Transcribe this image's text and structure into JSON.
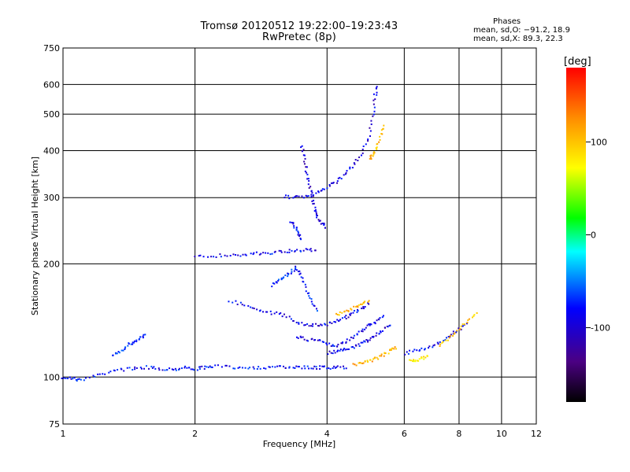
{
  "header": {
    "title_line1": "Tromsø 20120512 19:22:00–19:23:43",
    "title_line2": "RwPretec (8p)"
  },
  "phases": {
    "title": "Phases",
    "line1": "mean, sd,O: −91.2, 18.9",
    "line2": "mean, sd,X:  89.3, 22.3"
  },
  "chart_data": {
    "type": "scatter",
    "title": "Tromsø 20120512 19:22:00–19:23:43",
    "subtitle": "RwPretec (8p)",
    "xlabel": "Frequency [MHz]",
    "ylabel": "Stationary phase Virtual Height [km]",
    "x_scale": "log",
    "y_scale": "log",
    "xlim": [
      1,
      12
    ],
    "ylim": [
      75,
      750
    ],
    "x_ticks": [
      1,
      2,
      4,
      6,
      8,
      10,
      12
    ],
    "y_ticks": [
      75,
      100,
      200,
      300,
      400,
      500,
      600,
      750
    ],
    "grid": true,
    "colorbar": {
      "label": "[deg]",
      "range": [
        -180,
        180
      ],
      "ticks": [
        100,
        0,
        -100
      ],
      "colors": [
        "#000000",
        "#4b0082",
        "#0000ff",
        "#00ffff",
        "#00ff00",
        "#ffff00",
        "#ff8c00",
        "#ff0000"
      ]
    },
    "traces": [
      {
        "name": "",
        "phase": -90,
        "points": [
          [
            1.0,
            100
          ],
          [
            1.05,
            99
          ],
          [
            1.1,
            98
          ],
          [
            1.2,
            101
          ],
          [
            1.3,
            104
          ],
          [
            1.4,
            105
          ],
          [
            1.5,
            106
          ],
          [
            1.6,
            106
          ],
          [
            1.7,
            105
          ],
          [
            1.8,
            105
          ],
          [
            1.9,
            106
          ],
          [
            2.0,
            105
          ],
          [
            2.1,
            106
          ],
          [
            2.2,
            107
          ],
          [
            2.4,
            106
          ],
          [
            2.6,
            106
          ],
          [
            2.8,
            106
          ],
          [
            3.0,
            106
          ],
          [
            3.2,
            106
          ],
          [
            3.4,
            106
          ],
          [
            3.6,
            106
          ],
          [
            3.8,
            106
          ],
          [
            4.0,
            106
          ],
          [
            4.2,
            106
          ],
          [
            4.5,
            106
          ]
        ]
      },
      {
        "name": "",
        "phase": -80,
        "points": [
          [
            1.3,
            115
          ],
          [
            1.35,
            117
          ],
          [
            1.4,
            121
          ],
          [
            1.45,
            124
          ],
          [
            1.5,
            127
          ],
          [
            1.55,
            129
          ]
        ]
      },
      {
        "name": "",
        "phase": -95,
        "points": [
          [
            2.0,
            209
          ],
          [
            2.2,
            210
          ],
          [
            2.4,
            211
          ],
          [
            2.6,
            212
          ],
          [
            2.8,
            213
          ],
          [
            3.0,
            214
          ],
          [
            3.2,
            216
          ],
          [
            3.4,
            217
          ],
          [
            3.6,
            218
          ],
          [
            3.8,
            217
          ]
        ]
      },
      {
        "name": "",
        "phase": -100,
        "points": [
          [
            3.2,
            302
          ],
          [
            3.4,
            300
          ],
          [
            3.6,
            302
          ],
          [
            3.8,
            310
          ],
          [
            4.0,
            320
          ],
          [
            4.2,
            330
          ],
          [
            4.4,
            345
          ],
          [
            4.6,
            365
          ],
          [
            4.8,
            395
          ],
          [
            5.0,
            440
          ],
          [
            5.1,
            500
          ],
          [
            5.15,
            560
          ],
          [
            5.2,
            600
          ]
        ]
      },
      {
        "name": "",
        "phase": -105,
        "points": [
          [
            3.5,
            410
          ],
          [
            3.55,
            380
          ],
          [
            3.6,
            350
          ],
          [
            3.65,
            320
          ],
          [
            3.7,
            300
          ],
          [
            3.75,
            280
          ],
          [
            3.8,
            265
          ],
          [
            3.9,
            255
          ],
          [
            4.0,
            250
          ]
        ]
      },
      {
        "name": "",
        "phase": -95,
        "points": [
          [
            3.3,
            260
          ],
          [
            3.4,
            250
          ],
          [
            3.45,
            240
          ],
          [
            3.5,
            230
          ]
        ]
      },
      {
        "name": "",
        "phase": -100,
        "points": [
          [
            2.4,
            160
          ],
          [
            2.6,
            155
          ],
          [
            2.8,
            150
          ],
          [
            3.0,
            148
          ],
          [
            3.2,
            146
          ],
          [
            3.4,
            140
          ],
          [
            3.6,
            138
          ],
          [
            3.8,
            137
          ],
          [
            4.0,
            138
          ],
          [
            4.2,
            141
          ],
          [
            4.4,
            144
          ],
          [
            4.6,
            148
          ],
          [
            4.8,
            152
          ],
          [
            5.0,
            158
          ]
        ]
      },
      {
        "name": "",
        "phase": -85,
        "points": [
          [
            3.0,
            175
          ],
          [
            3.1,
            180
          ],
          [
            3.2,
            185
          ],
          [
            3.3,
            190
          ],
          [
            3.4,
            195
          ],
          [
            3.5,
            185
          ],
          [
            3.6,
            170
          ],
          [
            3.7,
            158
          ],
          [
            3.8,
            150
          ]
        ]
      },
      {
        "name": "",
        "phase": -100,
        "points": [
          [
            3.4,
            128
          ],
          [
            3.6,
            126
          ],
          [
            3.8,
            125
          ],
          [
            4.0,
            122
          ],
          [
            4.2,
            121
          ],
          [
            4.4,
            124
          ],
          [
            4.6,
            128
          ],
          [
            4.8,
            133
          ],
          [
            5.0,
            138
          ],
          [
            5.2,
            141
          ],
          [
            5.4,
            146
          ]
        ]
      },
      {
        "name": "",
        "phase": -100,
        "points": [
          [
            4.0,
            116
          ],
          [
            4.2,
            117
          ],
          [
            4.4,
            118
          ],
          [
            4.6,
            120
          ],
          [
            4.8,
            123
          ],
          [
            5.0,
            126
          ],
          [
            5.2,
            130
          ],
          [
            5.4,
            134
          ],
          [
            5.6,
            139
          ]
        ]
      },
      {
        "name": "",
        "phase": 110,
        "points": [
          [
            4.2,
            146
          ],
          [
            4.4,
            149
          ],
          [
            4.6,
            153
          ],
          [
            4.8,
            157
          ],
          [
            5.0,
            161
          ]
        ]
      },
      {
        "name": "",
        "phase": 110,
        "points": [
          [
            5.0,
            380
          ],
          [
            5.1,
            390
          ],
          [
            5.2,
            410
          ],
          [
            5.3,
            440
          ],
          [
            5.4,
            470
          ]
        ]
      },
      {
        "name": "",
        "phase": 110,
        "points": [
          [
            4.6,
            108
          ],
          [
            4.8,
            109
          ],
          [
            5.0,
            110
          ],
          [
            5.2,
            112
          ],
          [
            5.4,
            115
          ],
          [
            5.6,
            118
          ],
          [
            5.8,
            120
          ]
        ]
      },
      {
        "name": "",
        "phase": -95,
        "points": [
          [
            6.0,
            115
          ],
          [
            6.4,
            118
          ],
          [
            6.8,
            120
          ],
          [
            7.2,
            123
          ],
          [
            7.6,
            128
          ],
          [
            8.0,
            134
          ],
          [
            8.4,
            140
          ]
        ]
      },
      {
        "name": "",
        "phase": 100,
        "points": [
          [
            7.2,
            120
          ],
          [
            7.6,
            127
          ],
          [
            8.0,
            133
          ],
          [
            8.4,
            141
          ],
          [
            8.8,
            150
          ]
        ]
      },
      {
        "name": "",
        "phase": 80,
        "points": [
          [
            6.2,
            110
          ],
          [
            6.4,
            111
          ],
          [
            6.6,
            112
          ],
          [
            6.8,
            114
          ]
        ]
      }
    ]
  }
}
